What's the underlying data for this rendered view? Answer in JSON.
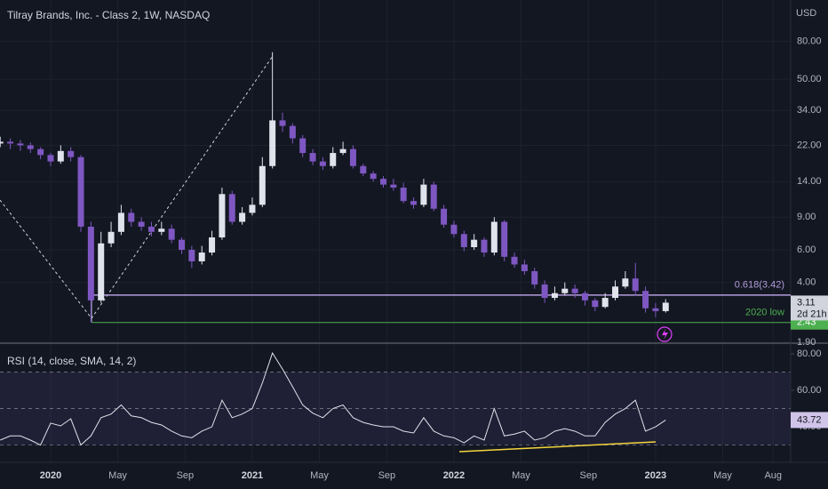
{
  "chart_data": {
    "type": "candlestick",
    "title": "Tilray Brands, Inc. - Class 2, 1W, NASDAQ",
    "currency": "USD",
    "log_scale": true,
    "grid": true,
    "up_color": "#e0e3eb",
    "down_color": "#7e57c2",
    "x": [
      2019.75,
      2019.8,
      2019.85,
      2019.9,
      2019.95,
      2020.0,
      2020.05,
      2020.1,
      2020.15,
      2020.2,
      2020.25,
      2020.3,
      2020.35,
      2020.4,
      2020.45,
      2020.5,
      2020.55,
      2020.6,
      2020.65,
      2020.7,
      2020.75,
      2020.8,
      2020.85,
      2020.9,
      2020.95,
      2021.0,
      2021.05,
      2021.1,
      2021.15,
      2021.2,
      2021.25,
      2021.3,
      2021.35,
      2021.4,
      2021.45,
      2021.5,
      2021.55,
      2021.6,
      2021.65,
      2021.7,
      2021.75,
      2021.8,
      2021.85,
      2021.9,
      2021.95,
      2022.0,
      2022.05,
      2022.1,
      2022.15,
      2022.2,
      2022.25,
      2022.3,
      2022.35,
      2022.4,
      2022.45,
      2022.5,
      2022.55,
      2022.6,
      2022.65,
      2022.7,
      2022.75,
      2022.8,
      2022.85,
      2022.9,
      2022.95,
      2023.0,
      2023.05
    ],
    "open": [
      22.5,
      23,
      22.5,
      22,
      21,
      19.5,
      18,
      20.5,
      19,
      8,
      3.2,
      6.5,
      7.5,
      9.5,
      8.5,
      8,
      7.5,
      7.8,
      6.8,
      6,
      5.2,
      5.8,
      7,
      12,
      8.5,
      9.5,
      10.5,
      17,
      30,
      28,
      24,
      20,
      18,
      17,
      20,
      21,
      17,
      15.5,
      14.5,
      13.5,
      13,
      11,
      10.5,
      13.5,
      10,
      8.2,
      7.3,
      6.2,
      6.8,
      5.8,
      8.5,
      5.5,
      5,
      4.6,
      3.9,
      3.3,
      3.5,
      3.7,
      3.5,
      3.2,
      2.95,
      3.3,
      3.8,
      4.2,
      3.6,
      2.9,
      2.8
    ],
    "high": [
      24.5,
      24,
      23.5,
      22.8,
      21.5,
      20,
      22,
      21.5,
      19.5,
      8.5,
      7.5,
      8.5,
      10.5,
      10,
      9,
      8.5,
      8.5,
      8.2,
      7,
      6.3,
      6.3,
      7.6,
      13,
      12.5,
      10.2,
      11.5,
      19,
      70,
      33,
      29,
      25,
      21,
      19,
      21.5,
      23,
      22,
      17.5,
      16,
      15,
      14.5,
      13.8,
      11.5,
      14.5,
      14,
      10.5,
      8.6,
      7.6,
      7.3,
      7,
      9,
      8.7,
      5.8,
      5.3,
      4.8,
      4.1,
      3.8,
      4,
      3.9,
      3.6,
      3.3,
      3.5,
      4.1,
      4.6,
      5.1,
      3.8,
      3.1,
      3.25
    ],
    "low": [
      21.5,
      21,
      20.5,
      20,
      18.5,
      17,
      17.5,
      18,
      7.5,
      2.43,
      3.1,
      6.2,
      7.2,
      8,
      7.6,
      7.1,
      7.2,
      6.5,
      5.7,
      4.8,
      5,
      5.6,
      6.8,
      8.2,
      8.2,
      9.2,
      10.2,
      16.5,
      26,
      22.5,
      19,
      17.2,
      16.2,
      16.5,
      19.5,
      16.5,
      15,
      14,
      13,
      12.5,
      10.7,
      10,
      10.2,
      9.7,
      7.9,
      7,
      5.9,
      6,
      5.5,
      5.6,
      5.2,
      4.8,
      4.4,
      3.7,
      3.1,
      3.2,
      3.4,
      3.3,
      3,
      2.8,
      2.9,
      3.2,
      3.7,
      3.4,
      2.75,
      2.6,
      2.75
    ],
    "close": [
      23,
      22.5,
      22,
      21,
      19.5,
      18,
      20.5,
      19,
      8,
      3.2,
      6.5,
      7.5,
      9.5,
      8.5,
      8,
      7.5,
      7.8,
      6.8,
      6,
      5.2,
      5.8,
      7,
      12,
      8.5,
      9.5,
      10.5,
      17,
      30,
      28,
      24,
      20,
      18,
      17,
      20,
      21,
      17,
      15.5,
      14.5,
      13.5,
      13,
      11,
      10.5,
      13.5,
      10,
      8.2,
      7.3,
      6.2,
      6.8,
      5.8,
      8.5,
      5.5,
      5,
      4.6,
      3.9,
      3.3,
      3.5,
      3.7,
      3.5,
      3.2,
      2.95,
      3.3,
      3.8,
      4.2,
      3.6,
      2.9,
      2.8,
      3.11
    ],
    "xlim": [
      2019.749,
      2023.67
    ],
    "xticks": [
      2020,
      {
        "value": 2020.333,
        "label": "May"
      },
      {
        "value": 2020.667,
        "label": "Sep"
      },
      2021,
      {
        "value": 2021.333,
        "label": "May"
      },
      {
        "value": 2021.667,
        "label": "Sep"
      },
      2022,
      {
        "value": 2022.333,
        "label": "May"
      },
      {
        "value": 2022.667,
        "label": "Sep"
      },
      2023,
      {
        "value": 2023.333,
        "label": "May"
      },
      {
        "value": 2023.583,
        "label": "Aug"
      }
    ],
    "ylim": [
      1.9,
      134
    ],
    "yticks": [
      {
        "value": 80,
        "label": "80.00"
      },
      {
        "value": 50,
        "label": "50.00"
      },
      {
        "value": 34,
        "label": "34.00"
      },
      {
        "value": 22,
        "label": "22.00"
      },
      {
        "value": 14,
        "label": "14.00"
      },
      {
        "value": 9,
        "label": "9.00"
      },
      {
        "value": 6,
        "label": "6.00"
      },
      {
        "value": 4,
        "label": "4.00"
      },
      {
        "value": 1.9,
        "label": "1.90"
      }
    ],
    "annotations": {
      "fib_label": "0.618(3.42)",
      "fib_level": 3.42,
      "low_label": "2020 low",
      "low_level": 2.43,
      "countdown": "2d 21h"
    },
    "rsi": {
      "title": "RSI (14, close, SMA, 14, 2)",
      "color": "#e0e3eb",
      "values": [
        32.7,
        35,
        35,
        32.7,
        30,
        42,
        40.5,
        44.4,
        30,
        35,
        45,
        47,
        52,
        46,
        45,
        42.4,
        41,
        37.6,
        35,
        34,
        37.6,
        40,
        54.6,
        45,
        47,
        50,
        64,
        80.5,
        71.7,
        62,
        52,
        47.5,
        45,
        50,
        52,
        45,
        42.4,
        41,
        40,
        40,
        37.6,
        36.6,
        45,
        37.6,
        35,
        34,
        31.2,
        35,
        32.7,
        50,
        35,
        36,
        37.6,
        32.7,
        34,
        37.6,
        39,
        37.6,
        35,
        35,
        42.4,
        47,
        50,
        54.6,
        37.6,
        40,
        43.72
      ],
      "ylim": [
        20.5,
        85.4
      ],
      "yticks": [
        {
          "value": 80,
          "label": "80.00"
        },
        {
          "value": 60,
          "label": "60.00"
        },
        {
          "value": 40,
          "label": "40.00"
        }
      ],
      "band": [
        30,
        70
      ],
      "mid": 50
    }
  }
}
